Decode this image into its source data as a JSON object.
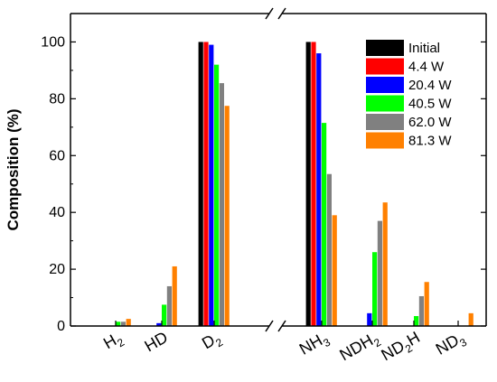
{
  "chart_data": {
    "type": "bar",
    "title": "",
    "xlabel": "",
    "ylabel": "Composition (%)",
    "ylim": [
      0,
      110
    ],
    "yticks": [
      0,
      20,
      40,
      60,
      80,
      100
    ],
    "grid": false,
    "legend_position": "top-right",
    "axis_break": true,
    "categories": [
      {
        "base": "H",
        "sub": "2",
        "tail": "",
        "sub2": ""
      },
      {
        "base": "HD",
        "sub": "",
        "tail": "",
        "sub2": ""
      },
      {
        "base": "D",
        "sub": "2",
        "tail": "",
        "sub2": ""
      },
      {
        "base": "NH",
        "sub": "3",
        "tail": "",
        "sub2": ""
      },
      {
        "base": "NDH",
        "sub": "2",
        "tail": "",
        "sub2": ""
      },
      {
        "base": "ND",
        "sub": "2",
        "tail": "H",
        "sub2": ""
      },
      {
        "base": "ND",
        "sub": "3",
        "tail": "",
        "sub2": ""
      }
    ],
    "series": [
      {
        "name": "Initial",
        "color": "#000000",
        "values": [
          0,
          0,
          100,
          100,
          0,
          0,
          0
        ]
      },
      {
        "name": "4.4 W",
        "color": "#ff0000",
        "values": [
          0,
          0,
          100,
          100,
          0,
          0,
          0
        ]
      },
      {
        "name": "20.4 W",
        "color": "#0000ff",
        "values": [
          0,
          1,
          99,
          96,
          4.5,
          0,
          0
        ]
      },
      {
        "name": "40.5 W",
        "color": "#00ff00",
        "values": [
          1.5,
          7.5,
          92,
          71.5,
          26,
          3.5,
          0
        ]
      },
      {
        "name": "62.0 W",
        "color": "#808080",
        "values": [
          1.5,
          14,
          85.5,
          53.5,
          37,
          10.5,
          0
        ]
      },
      {
        "name": "81.3 W",
        "color": "#ff8000",
        "values": [
          2.5,
          21,
          77.5,
          39,
          43.5,
          15.5,
          4.5
        ]
      }
    ]
  }
}
